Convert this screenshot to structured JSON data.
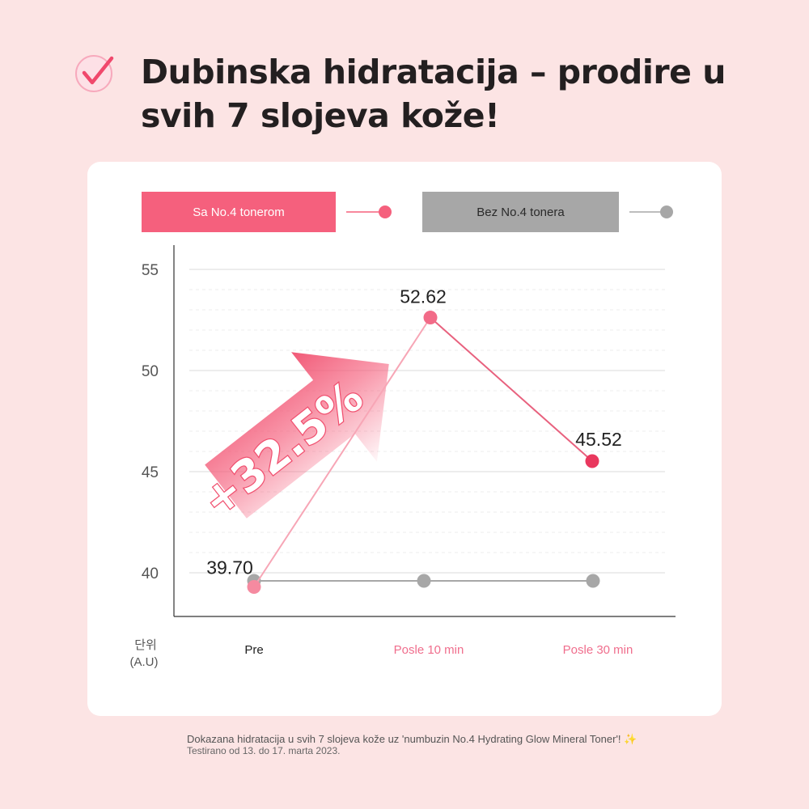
{
  "title": "Dubinska hidratacija – prodire u svih 7 slojeva kože!",
  "footnote": {
    "line1": "Dokazana hidratacija u svih 7 slojeva kože uz 'numbuzin No.4 Hydrating Glow Mineral Toner'!",
    "line2": "Testirano od 13. do 17. marta 2023.",
    "sparkle": "✨"
  },
  "colors": {
    "pink": "#f5607d",
    "gray": "#a7a7a7",
    "background": "#fce4e4"
  },
  "chart_data": {
    "type": "line",
    "x": [
      "Pre",
      "Posle 10 min",
      "Posle 30 min"
    ],
    "ylabel": "단위 (A.U)",
    "ylabel_line1": "단위",
    "ylabel_line2": "(A.U)",
    "ylim": [
      38,
      56
    ],
    "yticks": [
      40,
      45,
      50,
      55
    ],
    "grid": true,
    "legend_position": "top",
    "series": [
      {
        "name": "Sa No.4 tonerom",
        "color": "#f5607d",
        "values": [
          39.7,
          52.62,
          45.52
        ],
        "labels": [
          "39.70",
          "52.62",
          "45.52"
        ]
      },
      {
        "name": "Bez No.4 tonera",
        "color": "#a7a7a7",
        "values": [
          39.7,
          39.7,
          39.7
        ]
      }
    ],
    "annotation": "+32.5%"
  }
}
